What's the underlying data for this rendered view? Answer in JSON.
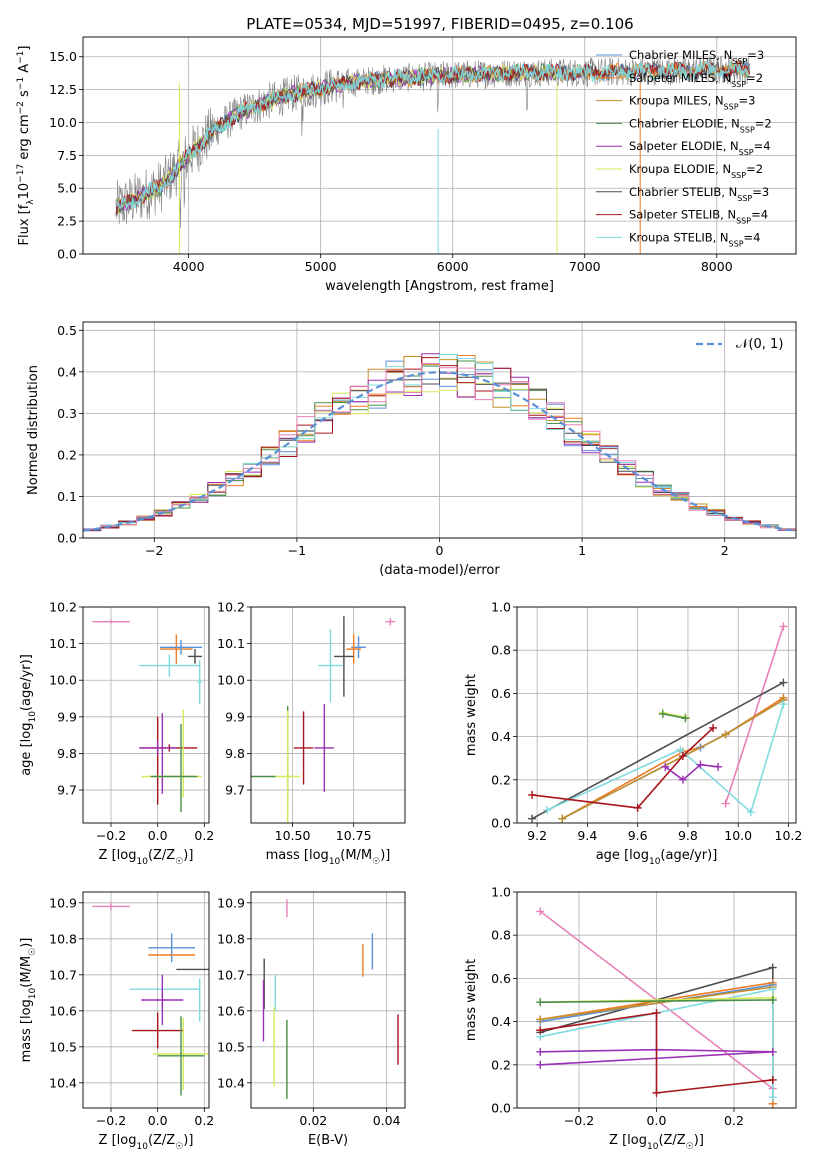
{
  "figure": {
    "title": "PLATE=0534, MJD=51997, FIBERID=0495, z=0.106"
  },
  "colors": {
    "Chabrier MILES": "#5b8fd6",
    "Salpeter MILES": "#ee7c24",
    "Kroupa MILES": "#c3902c",
    "Chabrier ELODIE": "#4a8f4a",
    "Salpeter ELODIE": "#9b2fb5",
    "Kroupa ELODIE": "#d8e85a",
    "Chabrier STELIB": "#4d4d4d",
    "Salpeter STELIB": "#a8141c",
    "Kroupa STELIB": "#80dbe0",
    "data": "#808080",
    "gauss": "#5b8fd6",
    "extra_pink": "#e880b8"
  },
  "chart_data": [
    {
      "id": "spectrum",
      "type": "line",
      "title": "PLATE=0534, MJD=51997, FIBERID=0495, z=0.106",
      "xlabel": "wavelength [Angstrom, rest frame]",
      "ylabel": "Flux [f_λ10^-17 erg cm^-2 s^-1 A^-1]",
      "xlim": [
        3200,
        8600
      ],
      "ylim": [
        0,
        16.5
      ],
      "xticks": [
        4000,
        5000,
        6000,
        7000,
        8000
      ],
      "yticks": [
        0.0,
        2.5,
        5.0,
        7.5,
        10.0,
        12.5,
        15.0
      ],
      "continuum_x": [
        3450,
        3600,
        3800,
        4000,
        4200,
        4400,
        4600,
        4800,
        5000,
        5200,
        5500,
        6000,
        6500,
        7000,
        7500,
        8000,
        8250
      ],
      "continuum_y": [
        3.5,
        4.2,
        5.2,
        7.5,
        9.5,
        10.8,
        11.6,
        12.2,
        12.6,
        13.0,
        13.3,
        13.6,
        13.8,
        13.8,
        13.9,
        14.0,
        14.0
      ],
      "legend": [
        {
          "label": "Chabrier MILES, N",
          "sub": "SSP",
          "n": "3"
        },
        {
          "label": "Salpeter MILES, N",
          "sub": "SSP",
          "n": "2"
        },
        {
          "label": "Kroupa MILES, N",
          "sub": "SSP",
          "n": "3"
        },
        {
          "label": "Chabrier ELODIE, N",
          "sub": "SSP",
          "n": "2"
        },
        {
          "label": "Salpeter ELODIE, N",
          "sub": "SSP",
          "n": "4"
        },
        {
          "label": "Kroupa ELODIE, N",
          "sub": "SSP",
          "n": "2"
        },
        {
          "label": "Chabrier STELIB, N",
          "sub": "SSP",
          "n": "3"
        },
        {
          "label": "Salpeter STELIB, N",
          "sub": "SSP",
          "n": "4"
        },
        {
          "label": "Kroupa STELIB, N",
          "sub": "SSP",
          "n": "4"
        }
      ]
    },
    {
      "id": "residuals",
      "type": "histogram",
      "xlabel": "(data-model)/error",
      "ylabel": "Normed distribution",
      "xlim": [
        -2.5,
        2.5
      ],
      "ylim": [
        0,
        0.52
      ],
      "xticks": [
        -2,
        -1,
        0,
        1,
        2
      ],
      "yticks": [
        0.0,
        0.1,
        0.2,
        0.3,
        0.4,
        0.5
      ],
      "legend": "𝒩(0, 1)"
    },
    {
      "id": "age_vs_Z",
      "type": "scatter",
      "xlabel": "Z [log10(Z/Z☉)]",
      "ylabel": "age  [log10(age/yr)]",
      "xlim": [
        -0.32,
        0.22
      ],
      "ylim": [
        9.61,
        10.2
      ],
      "xticks": [
        -0.2,
        0.0,
        0.2
      ],
      "yticks": [
        9.7,
        9.8,
        9.9,
        10.0,
        10.1,
        10.2
      ],
      "points": [
        {
          "s": "extra_pink",
          "x": -0.2,
          "y": 10.16,
          "dx": 0.08,
          "dy": 0.005
        },
        {
          "s": "Salpeter MILES",
          "x": 0.08,
          "y": 10.085,
          "dx": 0.07,
          "dy": 0.04
        },
        {
          "s": "Chabrier MILES",
          "x": 0.1,
          "y": 10.09,
          "dx": 0.09,
          "dy": 0.02
        },
        {
          "s": "Chabrier STELIB",
          "x": 0.16,
          "y": 10.065,
          "dx": 0.03,
          "dy": 0.02
        },
        {
          "s": "Kroupa STELIB",
          "x": 0.05,
          "y": 10.04,
          "dx": 0.13,
          "dy": 0.03
        },
        {
          "s": "Kroupa STELIB",
          "x": 0.18,
          "y": 9.995,
          "dx": 0.01,
          "dy": 0.06
        },
        {
          "s": "Salpeter STELIB",
          "x": 0.0,
          "y": 9.78,
          "dx": 0.0,
          "dy": 0.12
        },
        {
          "s": "Salpeter STELIB",
          "x": 0.05,
          "y": 9.815,
          "dx": 0.12,
          "dy": 0.01
        },
        {
          "s": "Salpeter ELODIE",
          "x": 0.0,
          "y": 9.815,
          "dx": 0.08,
          "dy": 0.02
        },
        {
          "s": "Salpeter ELODIE",
          "x": 0.02,
          "y": 9.8,
          "dx": 0.0,
          "dy": 0.11
        },
        {
          "s": "Chabrier ELODIE",
          "x": 0.1,
          "y": 9.76,
          "dx": 0.0,
          "dy": 0.12
        },
        {
          "s": "Kroupa ELODIE",
          "x": 0.11,
          "y": 9.8,
          "dx": 0.0,
          "dy": 0.12
        },
        {
          "s": "Kroupa ELODIE",
          "x": 0.06,
          "y": 9.737,
          "dx": 0.13,
          "dy": 0.0
        },
        {
          "s": "Chabrier ELODIE",
          "x": 0.07,
          "y": 9.737,
          "dx": 0.1,
          "dy": 0.0
        }
      ]
    },
    {
      "id": "age_vs_mass",
      "type": "scatter",
      "xlabel": "mass [log10(M/M☉)]",
      "ylabel": "",
      "xlim": [
        10.33,
        10.96
      ],
      "ylim": [
        9.61,
        10.2
      ],
      "xticks": [
        10.5,
        10.75
      ],
      "yticks": [
        9.7,
        9.8,
        9.9,
        10.0,
        10.1,
        10.2
      ],
      "points": [
        {
          "s": "extra_pink",
          "x": 10.9,
          "y": 10.16,
          "dx": 0.02,
          "dy": 0.01
        },
        {
          "s": "Chabrier MILES",
          "x": 10.77,
          "y": 10.09,
          "dx": 0.03,
          "dy": 0.03
        },
        {
          "s": "Salpeter MILES",
          "x": 10.75,
          "y": 10.085,
          "dx": 0.03,
          "dy": 0.04
        },
        {
          "s": "Chabrier STELIB",
          "x": 10.71,
          "y": 10.065,
          "dx": 0.04,
          "dy": 0.11
        },
        {
          "s": "Kroupa STELIB",
          "x": 10.655,
          "y": 10.04,
          "dx": 0.05,
          "dy": 0.1
        },
        {
          "s": "Salpeter STELIB",
          "x": 10.545,
          "y": 9.815,
          "dx": 0.04,
          "dy": 0.1
        },
        {
          "s": "Salpeter ELODIE",
          "x": 10.63,
          "y": 9.815,
          "dx": 0.04,
          "dy": 0.12
        },
        {
          "s": "Chabrier ELODIE",
          "x": 10.48,
          "y": 9.8,
          "dx": 0.0,
          "dy": 0.13
        },
        {
          "s": "Kroupa ELODIE",
          "x": 10.48,
          "y": 9.737,
          "dx": 0.05,
          "dy": 0.18
        },
        {
          "s": "Chabrier ELODIE",
          "x": 10.38,
          "y": 9.737,
          "dx": 0.05,
          "dy": 0.0
        }
      ]
    },
    {
      "id": "weight_vs_age",
      "type": "line",
      "xlabel": "age  [log10(age/yr)]",
      "ylabel": "mass weight",
      "xlim": [
        9.12,
        10.23
      ],
      "ylim": [
        0,
        1
      ],
      "xticks": [
        9.2,
        9.4,
        9.6,
        9.8,
        10.0,
        10.2
      ],
      "yticks": [
        0.0,
        0.2,
        0.4,
        0.6,
        0.8,
        1.0
      ],
      "series": [
        {
          "s": "extra_pink",
          "x": [
            9.95,
            10.18
          ],
          "y": [
            0.09,
            0.91
          ]
        },
        {
          "s": "Chabrier STELIB",
          "x": [
            9.18,
            10.18
          ],
          "y": [
            0.02,
            0.65
          ]
        },
        {
          "s": "Salpeter MILES",
          "x": [
            9.3,
            9.78,
            9.85,
            9.95,
            10.18
          ],
          "y": [
            0.02,
            0.33,
            0.35,
            0.41,
            0.58
          ]
        },
        {
          "s": "Chabrier MILES",
          "x": [
            9.3,
            9.85,
            9.95,
            10.18
          ],
          "y": [
            0.02,
            0.35,
            0.41,
            0.57
          ]
        },
        {
          "s": "Kroupa MILES",
          "x": [
            9.3,
            9.95,
            10.18
          ],
          "y": [
            0.02,
            0.41,
            0.57
          ]
        },
        {
          "s": "Kroupa STELIB",
          "x": [
            9.24,
            9.77,
            10.05,
            10.18
          ],
          "y": [
            0.06,
            0.34,
            0.05,
            0.55
          ]
        },
        {
          "s": "Salpeter STELIB",
          "x": [
            9.18,
            9.6,
            9.78,
            9.9
          ],
          "y": [
            0.13,
            0.07,
            0.31,
            0.44
          ]
        },
        {
          "s": "Salpeter ELODIE",
          "x": [
            9.71,
            9.78,
            9.85,
            9.92
          ],
          "y": [
            0.26,
            0.2,
            0.27,
            0.26
          ]
        },
        {
          "s": "Kroupa ELODIE",
          "x": [
            9.7,
            9.79
          ],
          "y": [
            0.51,
            0.49
          ]
        },
        {
          "s": "Chabrier ELODIE",
          "x": [
            9.7,
            9.79
          ],
          "y": [
            0.505,
            0.485
          ]
        }
      ]
    },
    {
      "id": "mass_vs_Z",
      "type": "scatter",
      "xlabel": "Z [log10(Z/Z☉)]",
      "ylabel": "mass [log10(M/M☉)]",
      "xlim": [
        -0.32,
        0.22
      ],
      "ylim": [
        10.33,
        10.93
      ],
      "xticks": [
        -0.2,
        0.0,
        0.2
      ],
      "yticks": [
        10.4,
        10.5,
        10.6,
        10.7,
        10.8,
        10.9
      ],
      "points": [
        {
          "s": "extra_pink",
          "x": -0.2,
          "y": 10.89,
          "dx": 0.08,
          "dy": 0.01
        },
        {
          "s": "Chabrier MILES",
          "x": 0.06,
          "y": 10.775,
          "dx": 0.1,
          "dy": 0.04
        },
        {
          "s": "Salpeter MILES",
          "x": 0.06,
          "y": 10.755,
          "dx": 0.1,
          "dy": 0.0
        },
        {
          "s": "Chabrier STELIB",
          "x": 0.15,
          "y": 10.715,
          "dx": 0.07,
          "dy": 0.0
        },
        {
          "s": "Kroupa STELIB",
          "x": 0.03,
          "y": 10.66,
          "dx": 0.15,
          "dy": 0.0
        },
        {
          "s": "Kroupa STELIB",
          "x": 0.18,
          "y": 10.63,
          "dx": 0.0,
          "dy": 0.06
        },
        {
          "s": "Salpeter ELODIE",
          "x": 0.02,
          "y": 10.63,
          "dx": 0.09,
          "dy": 0.07
        },
        {
          "s": "Salpeter STELIB",
          "x": 0.0,
          "y": 10.545,
          "dx": 0.11,
          "dy": 0.05
        },
        {
          "s": "Kroupa ELODIE",
          "x": 0.11,
          "y": 10.48,
          "dx": 0.13,
          "dy": 0.1
        },
        {
          "s": "Chabrier ELODIE",
          "x": 0.1,
          "y": 10.475,
          "dx": 0.1,
          "dy": 0.11
        }
      ]
    },
    {
      "id": "mass_vs_EBV",
      "type": "scatter",
      "xlabel": "E(B-V)",
      "ylabel": "",
      "xlim": [
        0.003,
        0.045
      ],
      "ylim": [
        10.33,
        10.93
      ],
      "xticks": [
        0.02,
        0.04
      ],
      "yticks": [
        10.4,
        10.5,
        10.6,
        10.7,
        10.8,
        10.9
      ],
      "points": [
        {
          "s": "extra_pink",
          "x": 0.0128,
          "y": 10.885,
          "dx": 0.0,
          "dy": 0.025
        },
        {
          "s": "Chabrier MILES",
          "x": 0.0361,
          "y": 10.765,
          "dx": 0.0,
          "dy": 0.05
        },
        {
          "s": "Salpeter MILES",
          "x": 0.0335,
          "y": 10.74,
          "dx": 0.0,
          "dy": 0.045
        },
        {
          "s": "Chabrier STELIB",
          "x": 0.0066,
          "y": 10.675,
          "dx": 0.0,
          "dy": 0.07
        },
        {
          "s": "Kroupa STELIB",
          "x": 0.0096,
          "y": 10.65,
          "dx": 0.0,
          "dy": 0.05
        },
        {
          "s": "Salpeter ELODIE",
          "x": 0.0064,
          "y": 10.6,
          "dx": 0.0,
          "dy": 0.085
        },
        {
          "s": "Kroupa ELODIE",
          "x": 0.0093,
          "y": 10.5,
          "dx": 0.0,
          "dy": 0.11
        },
        {
          "s": "Chabrier ELODIE",
          "x": 0.0128,
          "y": 10.465,
          "dx": 0.0,
          "dy": 0.11
        },
        {
          "s": "Salpeter STELIB",
          "x": 0.0431,
          "y": 10.52,
          "dx": 0.0,
          "dy": 0.07
        }
      ]
    },
    {
      "id": "weight_vs_Z",
      "type": "line",
      "xlabel": "Z [log10(Z/Z☉)]",
      "ylabel": "mass weight",
      "xlim": [
        -0.36,
        0.36
      ],
      "ylim": [
        0,
        1
      ],
      "xticks": [
        -0.2,
        0.0,
        0.2
      ],
      "yticks": [
        0.0,
        0.2,
        0.4,
        0.6,
        0.8,
        1.0
      ],
      "series": [
        {
          "s": "extra_pink",
          "x": [
            -0.3,
            0.3
          ],
          "y": [
            0.91,
            0.09
          ]
        },
        {
          "s": "Chabrier STELIB",
          "x": [
            -0.3,
            0.3,
            0.3
          ],
          "y": [
            0.35,
            0.65,
            0.02
          ]
        },
        {
          "s": "Salpeter MILES",
          "x": [
            -0.3,
            0.3,
            0.3
          ],
          "y": [
            0.41,
            0.58,
            0.02
          ]
        },
        {
          "s": "Chabrier MILES",
          "x": [
            -0.3,
            0.3
          ],
          "y": [
            0.4,
            0.57
          ]
        },
        {
          "s": "Kroupa MILES",
          "x": [
            -0.3,
            0.3
          ],
          "y": [
            0.41,
            0.56
          ]
        },
        {
          "s": "Kroupa STELIB",
          "x": [
            -0.3,
            0.3,
            0.3
          ],
          "y": [
            0.33,
            0.55,
            0.05
          ]
        },
        {
          "s": "Kroupa ELODIE",
          "x": [
            -0.3,
            0.3
          ],
          "y": [
            0.49,
            0.51
          ]
        },
        {
          "s": "Chabrier ELODIE",
          "x": [
            -0.3,
            0.3
          ],
          "y": [
            0.49,
            0.5
          ]
        },
        {
          "s": "Salpeter ELODIE",
          "x": [
            -0.3,
            0.0,
            0.3,
            -0.3
          ],
          "y": [
            0.26,
            0.27,
            0.26,
            0.2
          ]
        },
        {
          "s": "Salpeter STELIB",
          "x": [
            -0.3,
            0.0,
            0.0,
            0.3
          ],
          "y": [
            0.36,
            0.44,
            0.07,
            0.13
          ]
        }
      ]
    }
  ]
}
